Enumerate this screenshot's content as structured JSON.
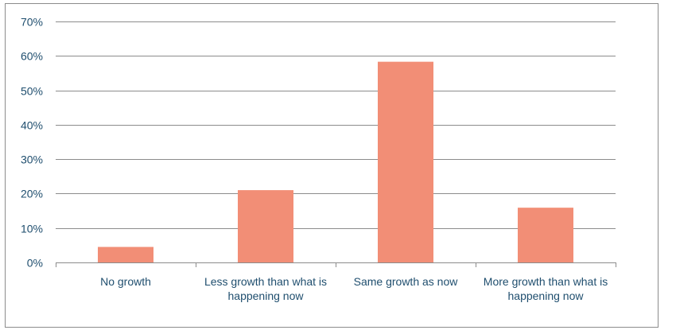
{
  "chart_data": {
    "type": "bar",
    "title": "",
    "xlabel": "",
    "ylabel": "",
    "categories": [
      [
        "No growth"
      ],
      [
        "Less growth than what is",
        "happening now"
      ],
      [
        "Same growth as now"
      ],
      [
        "More growth than what is",
        "happening now"
      ]
    ],
    "values": [
      0.045,
      0.21,
      0.583,
      0.159
    ],
    "ylim": [
      0,
      0.7
    ],
    "yticks": [
      0,
      0.1,
      0.2,
      0.3,
      0.4,
      0.5,
      0.6,
      0.7
    ],
    "ytick_labels": [
      "0%",
      "10%",
      "20%",
      "30%",
      "40%",
      "50%",
      "60%",
      "70%"
    ],
    "grid": true,
    "legend": "none",
    "bar_color": "#f28e76",
    "grid_color": "#8c8c8c",
    "label_color": "#1f4e6e"
  }
}
